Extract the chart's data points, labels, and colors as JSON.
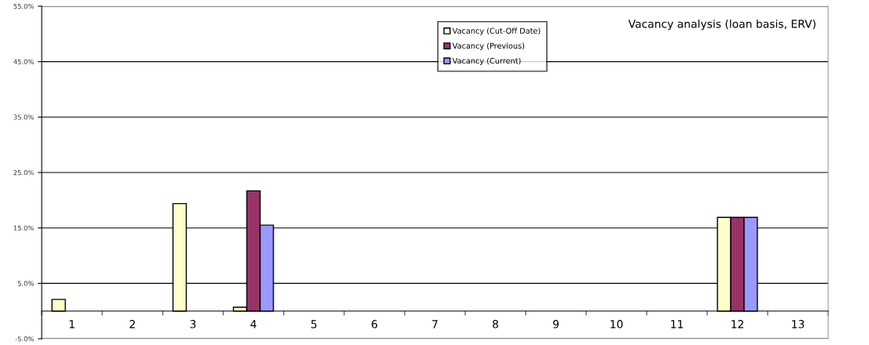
{
  "chart_data": {
    "type": "bar",
    "title": "Vacancy analysis (loan basis, ERV)",
    "categories": [
      "1",
      "2",
      "3",
      "4",
      "5",
      "6",
      "7",
      "8",
      "9",
      "10",
      "11",
      "12",
      "13"
    ],
    "series": [
      {
        "name": "Vacancy (Cut-Off Date)",
        "color": "#ffffcc",
        "values": [
          2.1,
          null,
          19.4,
          0.7,
          null,
          null,
          null,
          null,
          null,
          null,
          null,
          16.9,
          null
        ]
      },
      {
        "name": "Vacancy (Previous)",
        "color": "#993366",
        "values": [
          null,
          null,
          null,
          21.7,
          null,
          null,
          null,
          null,
          null,
          null,
          null,
          16.9,
          null
        ]
      },
      {
        "name": "Vacancy (Current)",
        "color": "#9999ff",
        "values": [
          null,
          null,
          null,
          15.5,
          null,
          null,
          null,
          null,
          null,
          null,
          null,
          16.9,
          null
        ]
      }
    ],
    "ylim": [
      -5,
      55
    ],
    "yticks": [
      {
        "value": -5,
        "label": "-5.0%"
      },
      {
        "value": 5,
        "label": "5.0%"
      },
      {
        "value": 15,
        "label": "15.0%"
      },
      {
        "value": 25,
        "label": "25.0%"
      },
      {
        "value": 35,
        "label": "35.0%"
      },
      {
        "value": 45,
        "label": "45.0%"
      },
      {
        "value": 55,
        "label": "55.0%"
      }
    ],
    "grid": "y",
    "legend": "top"
  }
}
